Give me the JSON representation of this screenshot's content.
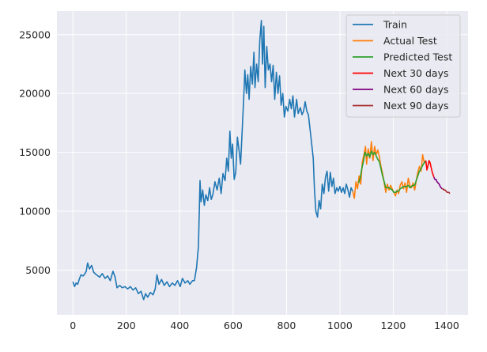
{
  "chart_data": {
    "type": "line",
    "title": "",
    "xlabel": "",
    "ylabel": "",
    "xlim": [
      -60,
      1480
    ],
    "ylim": [
      1200,
      27000
    ],
    "xticks": [
      0,
      200,
      400,
      600,
      800,
      1000,
      1200,
      1400
    ],
    "yticks": [
      5000,
      10000,
      15000,
      20000,
      25000
    ],
    "grid": true,
    "background": "#eaeaf2",
    "legend_position": "top-right",
    "series": [
      {
        "name": "Train",
        "color": "#1f77b4",
        "points": [
          [
            0,
            4000
          ],
          [
            6,
            3600
          ],
          [
            12,
            3900
          ],
          [
            18,
            3800
          ],
          [
            25,
            4300
          ],
          [
            30,
            4600
          ],
          [
            38,
            4500
          ],
          [
            45,
            4700
          ],
          [
            50,
            4900
          ],
          [
            55,
            5600
          ],
          [
            62,
            5100
          ],
          [
            70,
            5400
          ],
          [
            78,
            4800
          ],
          [
            88,
            4600
          ],
          [
            100,
            4400
          ],
          [
            110,
            4700
          ],
          [
            120,
            4300
          ],
          [
            130,
            4500
          ],
          [
            140,
            4100
          ],
          [
            150,
            4900
          ],
          [
            158,
            4400
          ],
          [
            165,
            3500
          ],
          [
            175,
            3700
          ],
          [
            185,
            3500
          ],
          [
            195,
            3600
          ],
          [
            205,
            3400
          ],
          [
            215,
            3600
          ],
          [
            225,
            3300
          ],
          [
            235,
            3500
          ],
          [
            245,
            3000
          ],
          [
            255,
            3200
          ],
          [
            265,
            2500
          ],
          [
            272,
            3000
          ],
          [
            280,
            2700
          ],
          [
            290,
            3100
          ],
          [
            300,
            2900
          ],
          [
            308,
            3400
          ],
          [
            315,
            4600
          ],
          [
            322,
            3800
          ],
          [
            332,
            4200
          ],
          [
            342,
            3700
          ],
          [
            352,
            4000
          ],
          [
            362,
            3600
          ],
          [
            372,
            3900
          ],
          [
            382,
            3700
          ],
          [
            392,
            4100
          ],
          [
            402,
            3600
          ],
          [
            410,
            4300
          ],
          [
            420,
            3900
          ],
          [
            430,
            4100
          ],
          [
            438,
            3800
          ],
          [
            448,
            4100
          ],
          [
            455,
            4100
          ],
          [
            463,
            5200
          ],
          [
            470,
            7000
          ],
          [
            476,
            12600
          ],
          [
            480,
            10800
          ],
          [
            486,
            11800
          ],
          [
            492,
            10500
          ],
          [
            498,
            11400
          ],
          [
            505,
            10900
          ],
          [
            512,
            12000
          ],
          [
            518,
            11000
          ],
          [
            524,
            11400
          ],
          [
            532,
            12500
          ],
          [
            540,
            11800
          ],
          [
            548,
            12800
          ],
          [
            555,
            11500
          ],
          [
            562,
            13200
          ],
          [
            570,
            12600
          ],
          [
            576,
            14500
          ],
          [
            582,
            13400
          ],
          [
            588,
            16800
          ],
          [
            593,
            14500
          ],
          [
            598,
            15700
          ],
          [
            604,
            12700
          ],
          [
            610,
            13300
          ],
          [
            616,
            16300
          ],
          [
            622,
            15200
          ],
          [
            628,
            14000
          ],
          [
            634,
            16800
          ],
          [
            640,
            19800
          ],
          [
            644,
            22000
          ],
          [
            650,
            20000
          ],
          [
            655,
            21600
          ],
          [
            660,
            19500
          ],
          [
            666,
            22300
          ],
          [
            672,
            20800
          ],
          [
            678,
            23500
          ],
          [
            682,
            20500
          ],
          [
            688,
            22500
          ],
          [
            694,
            21000
          ],
          [
            700,
            24500
          ],
          [
            706,
            26200
          ],
          [
            710,
            22500
          ],
          [
            715,
            25700
          ],
          [
            720,
            20500
          ],
          [
            726,
            24000
          ],
          [
            732,
            22000
          ],
          [
            738,
            22500
          ],
          [
            744,
            21000
          ],
          [
            750,
            22400
          ],
          [
            756,
            19500
          ],
          [
            762,
            21800
          ],
          [
            768,
            20000
          ],
          [
            774,
            21500
          ],
          [
            780,
            19000
          ],
          [
            786,
            20000
          ],
          [
            792,
            18000
          ],
          [
            798,
            18900
          ],
          [
            805,
            18500
          ],
          [
            812,
            19500
          ],
          [
            818,
            18700
          ],
          [
            824,
            19800
          ],
          [
            830,
            18000
          ],
          [
            838,
            19500
          ],
          [
            844,
            18300
          ],
          [
            852,
            18800
          ],
          [
            858,
            18200
          ],
          [
            864,
            18500
          ],
          [
            870,
            19300
          ],
          [
            876,
            18500
          ],
          [
            882,
            18200
          ],
          [
            888,
            17000
          ],
          [
            894,
            15800
          ],
          [
            900,
            14500
          ],
          [
            905,
            11800
          ],
          [
            910,
            10000
          ],
          [
            916,
            9500
          ],
          [
            922,
            10900
          ],
          [
            928,
            10200
          ],
          [
            934,
            12300
          ],
          [
            940,
            11500
          ],
          [
            946,
            12900
          ],
          [
            952,
            13400
          ],
          [
            958,
            11700
          ],
          [
            964,
            13300
          ],
          [
            970,
            12100
          ],
          [
            976,
            12800
          ],
          [
            982,
            11500
          ],
          [
            988,
            12000
          ],
          [
            994,
            11700
          ],
          [
            1000,
            12100
          ],
          [
            1006,
            11600
          ],
          [
            1012,
            12000
          ],
          [
            1018,
            11500
          ],
          [
            1024,
            12300
          ],
          [
            1030,
            11800
          ],
          [
            1036,
            11200
          ],
          [
            1042,
            12000
          ],
          [
            1048,
            11700
          ]
        ]
      },
      {
        "name": "Actual Test",
        "color": "#ff7f0e",
        "points": [
          [
            1048,
            11700
          ],
          [
            1054,
            11100
          ],
          [
            1060,
            12500
          ],
          [
            1066,
            11900
          ],
          [
            1072,
            13000
          ],
          [
            1078,
            12300
          ],
          [
            1084,
            14200
          ],
          [
            1090,
            14800
          ],
          [
            1096,
            15500
          ],
          [
            1100,
            14000
          ],
          [
            1106,
            15300
          ],
          [
            1112,
            14500
          ],
          [
            1118,
            15900
          ],
          [
            1124,
            14300
          ],
          [
            1130,
            15500
          ],
          [
            1136,
            14800
          ],
          [
            1142,
            15200
          ],
          [
            1148,
            14600
          ],
          [
            1154,
            13800
          ],
          [
            1160,
            13200
          ],
          [
            1166,
            12400
          ],
          [
            1172,
            11600
          ],
          [
            1178,
            12300
          ],
          [
            1184,
            11800
          ],
          [
            1190,
            12200
          ],
          [
            1196,
            11900
          ],
          [
            1202,
            11600
          ],
          [
            1208,
            11300
          ],
          [
            1214,
            11800
          ],
          [
            1220,
            11500
          ],
          [
            1226,
            12200
          ],
          [
            1232,
            12500
          ],
          [
            1238,
            11900
          ],
          [
            1244,
            12400
          ],
          [
            1250,
            11600
          ],
          [
            1256,
            12800
          ],
          [
            1262,
            12200
          ],
          [
            1268,
            12000
          ],
          [
            1274,
            12400
          ],
          [
            1280,
            11800
          ],
          [
            1286,
            12600
          ],
          [
            1292,
            13300
          ],
          [
            1298,
            13800
          ],
          [
            1304,
            13400
          ],
          [
            1310,
            14800
          ],
          [
            1316,
            14100
          ],
          [
            1322,
            14300
          ]
        ]
      },
      {
        "name": "Predicted Test",
        "color": "#2ca02c",
        "points": [
          [
            1070,
            12400
          ],
          [
            1076,
            12800
          ],
          [
            1082,
            13600
          ],
          [
            1088,
            14200
          ],
          [
            1094,
            15000
          ],
          [
            1100,
            14700
          ],
          [
            1106,
            14900
          ],
          [
            1112,
            14600
          ],
          [
            1118,
            15100
          ],
          [
            1124,
            14800
          ],
          [
            1130,
            15000
          ],
          [
            1136,
            14700
          ],
          [
            1142,
            14400
          ],
          [
            1148,
            14200
          ],
          [
            1154,
            13600
          ],
          [
            1160,
            13000
          ],
          [
            1166,
            12500
          ],
          [
            1172,
            12000
          ],
          [
            1178,
            12000
          ],
          [
            1184,
            12000
          ],
          [
            1190,
            11900
          ],
          [
            1196,
            11800
          ],
          [
            1202,
            11600
          ],
          [
            1208,
            11600
          ],
          [
            1214,
            11700
          ],
          [
            1220,
            11700
          ],
          [
            1226,
            11900
          ],
          [
            1232,
            12000
          ],
          [
            1238,
            12100
          ],
          [
            1244,
            12100
          ],
          [
            1250,
            12100
          ],
          [
            1256,
            12200
          ],
          [
            1262,
            12000
          ],
          [
            1268,
            12100
          ],
          [
            1274,
            12200
          ],
          [
            1280,
            12200
          ],
          [
            1286,
            12600
          ],
          [
            1292,
            13000
          ],
          [
            1298,
            13400
          ],
          [
            1304,
            13600
          ],
          [
            1310,
            13900
          ],
          [
            1316,
            14100
          ],
          [
            1322,
            14300
          ]
        ]
      },
      {
        "name": "Next 30 days",
        "color": "#ff0000",
        "points": [
          [
            1322,
            14300
          ],
          [
            1326,
            13500
          ],
          [
            1330,
            13900
          ],
          [
            1334,
            14300
          ],
          [
            1338,
            14100
          ],
          [
            1342,
            13700
          ],
          [
            1346,
            13300
          ],
          [
            1352,
            12900
          ]
        ]
      },
      {
        "name": "Next 60 days",
        "color": "#800080",
        "points": [
          [
            1352,
            12900
          ],
          [
            1356,
            12700
          ],
          [
            1360,
            12700
          ],
          [
            1364,
            12500
          ],
          [
            1368,
            12400
          ],
          [
            1372,
            12300
          ],
          [
            1376,
            12100
          ],
          [
            1382,
            11900
          ]
        ]
      },
      {
        "name": "Next 90 days",
        "color": "#a52a2a",
        "points": [
          [
            1382,
            11900
          ],
          [
            1386,
            11900
          ],
          [
            1390,
            11800
          ],
          [
            1394,
            11800
          ],
          [
            1398,
            11700
          ],
          [
            1402,
            11600
          ],
          [
            1408,
            11600
          ],
          [
            1412,
            11500
          ]
        ]
      }
    ]
  }
}
